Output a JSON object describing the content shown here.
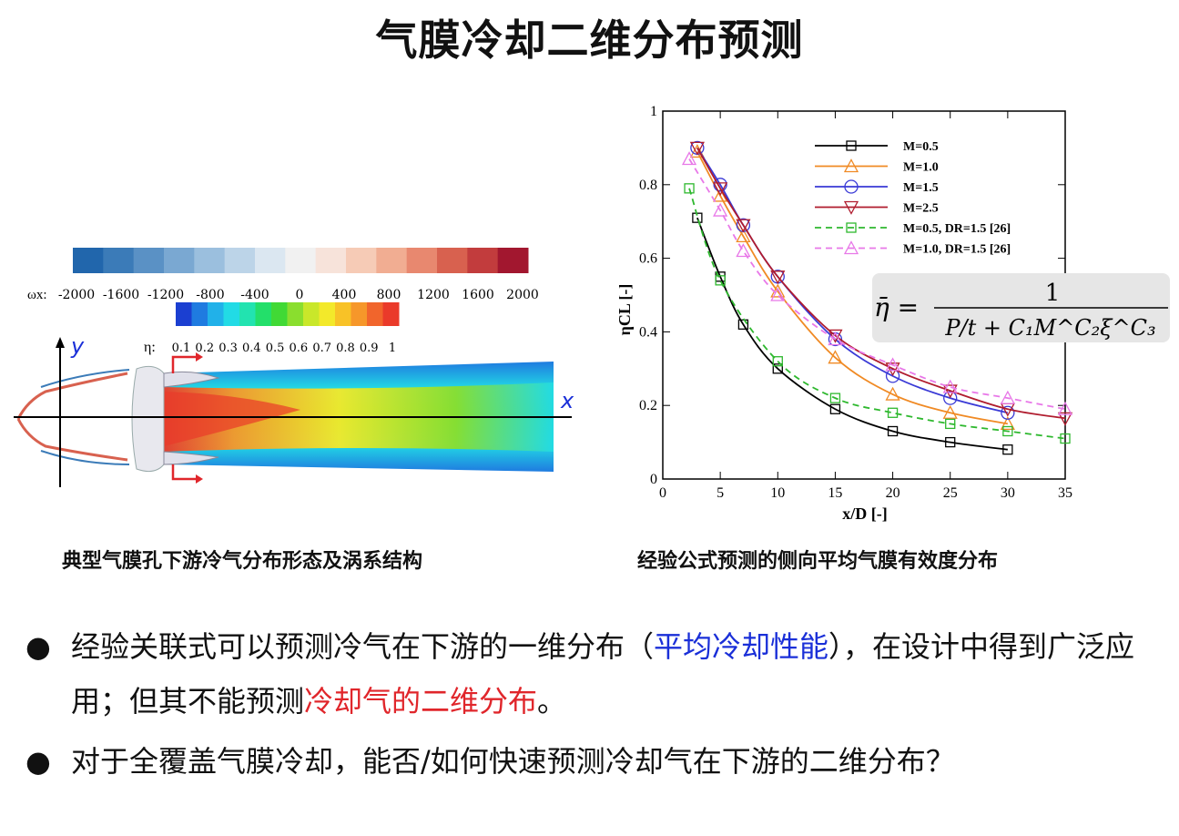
{
  "title": "气膜冷却二维分布预测",
  "left_panel": {
    "caption": "典型气膜孔下游冷气分布形态及涡系结构",
    "omega_label": "ωx:",
    "omega_ticks": [
      "-2000",
      "-1600",
      "-1200",
      "-800",
      "-400",
      "0",
      "400",
      "800",
      "1200",
      "1600",
      "2000"
    ],
    "eta_label": "η:",
    "eta_ticks": [
      "0.1",
      "0.2",
      "0.3",
      "0.4",
      "0.5",
      "0.6",
      "0.7",
      "0.8",
      "0.9",
      "1"
    ],
    "axis_y": "y",
    "axis_x": "x"
  },
  "right_panel": {
    "caption": "经验公式预测的侧向平均气膜有效度分布"
  },
  "formula": {
    "lhs": "η̄ =",
    "numerator": "1",
    "denominator": "P/t + C₁M^C₂ξ^C₃"
  },
  "chart_data": {
    "type": "line",
    "xlabel": "x/D [-]",
    "ylabel": "ηCL [-]",
    "xlim": [
      0,
      35
    ],
    "ylim": [
      0,
      1
    ],
    "xticks": [
      0,
      5,
      10,
      15,
      20,
      25,
      30,
      35
    ],
    "yticks": [
      0,
      0.2,
      0.4,
      0.6,
      0.8,
      1
    ],
    "legend_position": "top-right",
    "series": [
      {
        "name": "M=0.5",
        "color": "#000000",
        "marker": "square",
        "dash": false,
        "x": [
          3,
          5,
          7,
          10,
          15,
          20,
          25,
          30
        ],
        "y": [
          0.71,
          0.55,
          0.42,
          0.3,
          0.19,
          0.13,
          0.1,
          0.08
        ]
      },
      {
        "name": "M=1.0",
        "color": "#f08a24",
        "marker": "triangle-up",
        "dash": false,
        "x": [
          3,
          5,
          7,
          10,
          15,
          20,
          25,
          30
        ],
        "y": [
          0.89,
          0.77,
          0.66,
          0.51,
          0.33,
          0.23,
          0.18,
          0.15
        ]
      },
      {
        "name": "M=1.5",
        "color": "#3a3ad6",
        "marker": "circle",
        "dash": false,
        "x": [
          3,
          5,
          7,
          10,
          15,
          20,
          25,
          30
        ],
        "y": [
          0.9,
          0.8,
          0.69,
          0.55,
          0.38,
          0.28,
          0.22,
          0.18
        ]
      },
      {
        "name": "M=2.5",
        "color": "#b01c2e",
        "marker": "triangle-down",
        "dash": false,
        "x": [
          3,
          5,
          7,
          10,
          15,
          20,
          25,
          30,
          35
        ],
        "y": [
          0.9,
          0.79,
          0.69,
          0.55,
          0.39,
          0.3,
          0.24,
          0.19,
          0.165
        ]
      },
      {
        "name": "M=0.5, DR=1.5 [26]",
        "color": "#2eb82e",
        "marker": "square",
        "dash": true,
        "x": [
          2.3,
          5,
          10,
          15,
          20,
          25,
          30,
          35
        ],
        "y": [
          0.79,
          0.54,
          0.32,
          0.22,
          0.18,
          0.15,
          0.13,
          0.11
        ]
      },
      {
        "name": "M=1.0, DR=1.5 [26]",
        "color": "#e878e8",
        "marker": "triangle-up",
        "dash": true,
        "x": [
          2.3,
          5,
          7,
          10,
          15,
          20,
          25,
          30,
          35
        ],
        "y": [
          0.87,
          0.73,
          0.62,
          0.5,
          0.38,
          0.31,
          0.25,
          0.22,
          0.19
        ]
      }
    ]
  },
  "bullets": {
    "b1_part1": "经验关联式可以预测冷气在下游的一维分布（",
    "b1_blue": "平均冷却性能",
    "b1_part2": "），在设计中得到广泛应用；但其不能预测",
    "b1_red": "冷却气的二维分布",
    "b1_part3": "。",
    "b2": "对于全覆盖气膜冷却，能否/如何快速预测冷却气在下游的二维分布？"
  },
  "colors": {
    "omega_colormap": [
      "#2166ac",
      "#3b7bb8",
      "#5a91c5",
      "#7aa8d2",
      "#9bbfde",
      "#bcd4e8",
      "#dbe7f1",
      "#f1f1f1",
      "#f7e3da",
      "#f6cbb6",
      "#f1ad92",
      "#e8886f",
      "#d8614f",
      "#c23c3d",
      "#a2172f"
    ],
    "eta_colormap": [
      "#1b3fd1",
      "#1f7be0",
      "#21b1e9",
      "#22dbe5",
      "#22e3b0",
      "#23df6a",
      "#41d935",
      "#8ade2e",
      "#c9e72a",
      "#f3e92a",
      "#f8c227",
      "#f6972a",
      "#f1652c",
      "#ea3a2a"
    ]
  }
}
